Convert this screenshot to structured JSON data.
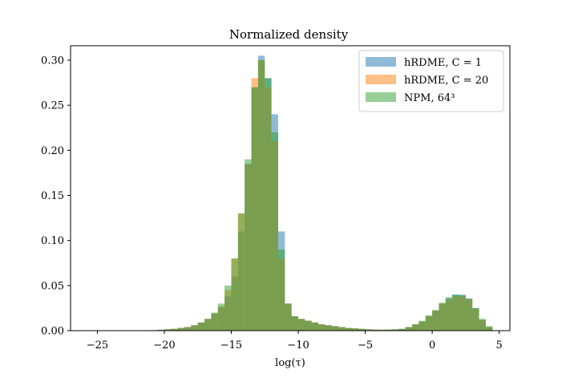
{
  "chart_data": {
    "type": "histogram",
    "title": "Normalized density",
    "xlabel": "log(τ)",
    "ylabel": "",
    "xlim": [
      -27,
      5.8
    ],
    "ylim": [
      0,
      0.3
    ],
    "yaxis_max": 0.316,
    "xticks": [
      -25,
      -20,
      -15,
      -10,
      -5,
      0,
      5
    ],
    "xtick_labels": [
      "−25",
      "−20",
      "−15",
      "−10",
      "−5",
      "0",
      "5"
    ],
    "yticks": [
      0.0,
      0.05,
      0.1,
      0.15,
      0.2,
      0.25,
      0.3
    ],
    "ytick_labels": [
      "0.00",
      "0.05",
      "0.10",
      "0.15",
      "0.20",
      "0.25",
      "0.30"
    ],
    "bin_width": 0.5,
    "legend_position": "upper right",
    "alpha": 0.5,
    "series": [
      {
        "name": "hRDME, C = 1",
        "color": "#1f77b4",
        "bins": [
          {
            "x": -21,
            "y": 0.0005
          },
          {
            "x": -20.5,
            "y": 0.001
          },
          {
            "x": -20,
            "y": 0.0015
          },
          {
            "x": -19.5,
            "y": 0.002
          },
          {
            "x": -19,
            "y": 0.003
          },
          {
            "x": -18.5,
            "y": 0.004
          },
          {
            "x": -18,
            "y": 0.006
          },
          {
            "x": -17.5,
            "y": 0.009
          },
          {
            "x": -17,
            "y": 0.013
          },
          {
            "x": -16.5,
            "y": 0.019
          },
          {
            "x": -16,
            "y": 0.026
          },
          {
            "x": -15.5,
            "y": 0.038
          },
          {
            "x": -15,
            "y": 0.06
          },
          {
            "x": -14.5,
            "y": 0.11
          },
          {
            "x": -14,
            "y": 0.185
          },
          {
            "x": -13.5,
            "y": 0.27
          },
          {
            "x": -13,
            "y": 0.305
          },
          {
            "x": -12.5,
            "y": 0.28
          },
          {
            "x": -12,
            "y": 0.24
          },
          {
            "x": -11.5,
            "y": 0.11
          },
          {
            "x": -11,
            "y": 0.03
          },
          {
            "x": -10.5,
            "y": 0.016
          },
          {
            "x": -10,
            "y": 0.013
          },
          {
            "x": -9.5,
            "y": 0.011
          },
          {
            "x": -9,
            "y": 0.009
          },
          {
            "x": -8.5,
            "y": 0.007
          },
          {
            "x": -8,
            "y": 0.006
          },
          {
            "x": -7.5,
            "y": 0.005
          },
          {
            "x": -7,
            "y": 0.004
          },
          {
            "x": -6.5,
            "y": 0.003
          },
          {
            "x": -6,
            "y": 0.0025
          },
          {
            "x": -5.5,
            "y": 0.002
          },
          {
            "x": -5,
            "y": 0.0015
          },
          {
            "x": -4.5,
            "y": 0.0012
          },
          {
            "x": -4,
            "y": 0.001
          },
          {
            "x": -3.5,
            "y": 0.0012
          },
          {
            "x": -3,
            "y": 0.0015
          },
          {
            "x": -2.5,
            "y": 0.002
          },
          {
            "x": -2,
            "y": 0.004
          },
          {
            "x": -1.5,
            "y": 0.007
          },
          {
            "x": -1,
            "y": 0.01
          },
          {
            "x": -0.5,
            "y": 0.016
          },
          {
            "x": 0,
            "y": 0.022
          },
          {
            "x": 0.5,
            "y": 0.03
          },
          {
            "x": 1,
            "y": 0.036
          },
          {
            "x": 1.5,
            "y": 0.04
          },
          {
            "x": 2,
            "y": 0.04
          },
          {
            "x": 2.5,
            "y": 0.036
          },
          {
            "x": 3,
            "y": 0.025
          },
          {
            "x": 3.5,
            "y": 0.012
          },
          {
            "x": 4,
            "y": 0.004
          }
        ]
      },
      {
        "name": "hRDME, C = 20",
        "color": "#ff7f0e",
        "bins": [
          {
            "x": -21,
            "y": 0.0005
          },
          {
            "x": -20.5,
            "y": 0.001
          },
          {
            "x": -20,
            "y": 0.0015
          },
          {
            "x": -19.5,
            "y": 0.002
          },
          {
            "x": -19,
            "y": 0.003
          },
          {
            "x": -18.5,
            "y": 0.004
          },
          {
            "x": -18,
            "y": 0.006
          },
          {
            "x": -17.5,
            "y": 0.009
          },
          {
            "x": -17,
            "y": 0.013
          },
          {
            "x": -16.5,
            "y": 0.019
          },
          {
            "x": -16,
            "y": 0.027
          },
          {
            "x": -15.5,
            "y": 0.045
          },
          {
            "x": -15,
            "y": 0.08
          },
          {
            "x": -14.5,
            "y": 0.13
          },
          {
            "x": -14,
            "y": 0.185
          },
          {
            "x": -13.5,
            "y": 0.28
          },
          {
            "x": -13,
            "y": 0.3
          },
          {
            "x": -12.5,
            "y": 0.27
          },
          {
            "x": -12,
            "y": 0.21
          },
          {
            "x": -11.5,
            "y": 0.08
          },
          {
            "x": -11,
            "y": 0.03
          },
          {
            "x": -10.5,
            "y": 0.016
          },
          {
            "x": -10,
            "y": 0.013
          },
          {
            "x": -9.5,
            "y": 0.011
          },
          {
            "x": -9,
            "y": 0.009
          },
          {
            "x": -8.5,
            "y": 0.007
          },
          {
            "x": -8,
            "y": 0.006
          },
          {
            "x": -7.5,
            "y": 0.005
          },
          {
            "x": -7,
            "y": 0.004
          },
          {
            "x": -6.5,
            "y": 0.003
          },
          {
            "x": -6,
            "y": 0.0025
          },
          {
            "x": -5.5,
            "y": 0.002
          },
          {
            "x": -5,
            "y": 0.0015
          },
          {
            "x": -4.5,
            "y": 0.0012
          },
          {
            "x": -4,
            "y": 0.001
          },
          {
            "x": -3.5,
            "y": 0.0012
          },
          {
            "x": -3,
            "y": 0.0015
          },
          {
            "x": -2.5,
            "y": 0.002
          },
          {
            "x": -2,
            "y": 0.004
          },
          {
            "x": -1.5,
            "y": 0.007
          },
          {
            "x": -1,
            "y": 0.01
          },
          {
            "x": -0.5,
            "y": 0.016
          },
          {
            "x": 0,
            "y": 0.022
          },
          {
            "x": 0.5,
            "y": 0.03
          },
          {
            "x": 1,
            "y": 0.034
          },
          {
            "x": 1.5,
            "y": 0.038
          },
          {
            "x": 2,
            "y": 0.038
          },
          {
            "x": 2.5,
            "y": 0.035
          },
          {
            "x": 3,
            "y": 0.024
          },
          {
            "x": 3.5,
            "y": 0.012
          },
          {
            "x": 4,
            "y": 0.004
          }
        ]
      },
      {
        "name": "NPM, 64³",
        "color": "#2ca02c",
        "bins": [
          {
            "x": -21,
            "y": 0.0005
          },
          {
            "x": -20.5,
            "y": 0.001
          },
          {
            "x": -20,
            "y": 0.0015
          },
          {
            "x": -19.5,
            "y": 0.002
          },
          {
            "x": -19,
            "y": 0.003
          },
          {
            "x": -18.5,
            "y": 0.004
          },
          {
            "x": -18,
            "y": 0.006
          },
          {
            "x": -17.5,
            "y": 0.009
          },
          {
            "x": -17,
            "y": 0.013
          },
          {
            "x": -16.5,
            "y": 0.02
          },
          {
            "x": -16,
            "y": 0.03
          },
          {
            "x": -15.5,
            "y": 0.05
          },
          {
            "x": -15,
            "y": 0.08
          },
          {
            "x": -14.5,
            "y": 0.13
          },
          {
            "x": -14,
            "y": 0.19
          },
          {
            "x": -13.5,
            "y": 0.27
          },
          {
            "x": -13,
            "y": 0.3
          },
          {
            "x": -12.5,
            "y": 0.28
          },
          {
            "x": -12,
            "y": 0.22
          },
          {
            "x": -11.5,
            "y": 0.09
          },
          {
            "x": -11,
            "y": 0.03
          },
          {
            "x": -10.5,
            "y": 0.016
          },
          {
            "x": -10,
            "y": 0.013
          },
          {
            "x": -9.5,
            "y": 0.011
          },
          {
            "x": -9,
            "y": 0.009
          },
          {
            "x": -8.5,
            "y": 0.007
          },
          {
            "x": -8,
            "y": 0.006
          },
          {
            "x": -7.5,
            "y": 0.005
          },
          {
            "x": -7,
            "y": 0.004
          },
          {
            "x": -6.5,
            "y": 0.003
          },
          {
            "x": -6,
            "y": 0.0025
          },
          {
            "x": -5.5,
            "y": 0.002
          },
          {
            "x": -5,
            "y": 0.0015
          },
          {
            "x": -4.5,
            "y": 0.0012
          },
          {
            "x": -4,
            "y": 0.001
          },
          {
            "x": -3.5,
            "y": 0.0012
          },
          {
            "x": -3,
            "y": 0.0015
          },
          {
            "x": -2.5,
            "y": 0.002
          },
          {
            "x": -2,
            "y": 0.004
          },
          {
            "x": -1.5,
            "y": 0.007
          },
          {
            "x": -1,
            "y": 0.011
          },
          {
            "x": -0.5,
            "y": 0.017
          },
          {
            "x": 0,
            "y": 0.023
          },
          {
            "x": 0.5,
            "y": 0.031
          },
          {
            "x": 1,
            "y": 0.037
          },
          {
            "x": 1.5,
            "y": 0.04
          },
          {
            "x": 2,
            "y": 0.039
          },
          {
            "x": 2.5,
            "y": 0.035
          },
          {
            "x": 3,
            "y": 0.025
          },
          {
            "x": 3.5,
            "y": 0.013
          },
          {
            "x": 4,
            "y": 0.005
          }
        ]
      }
    ]
  }
}
